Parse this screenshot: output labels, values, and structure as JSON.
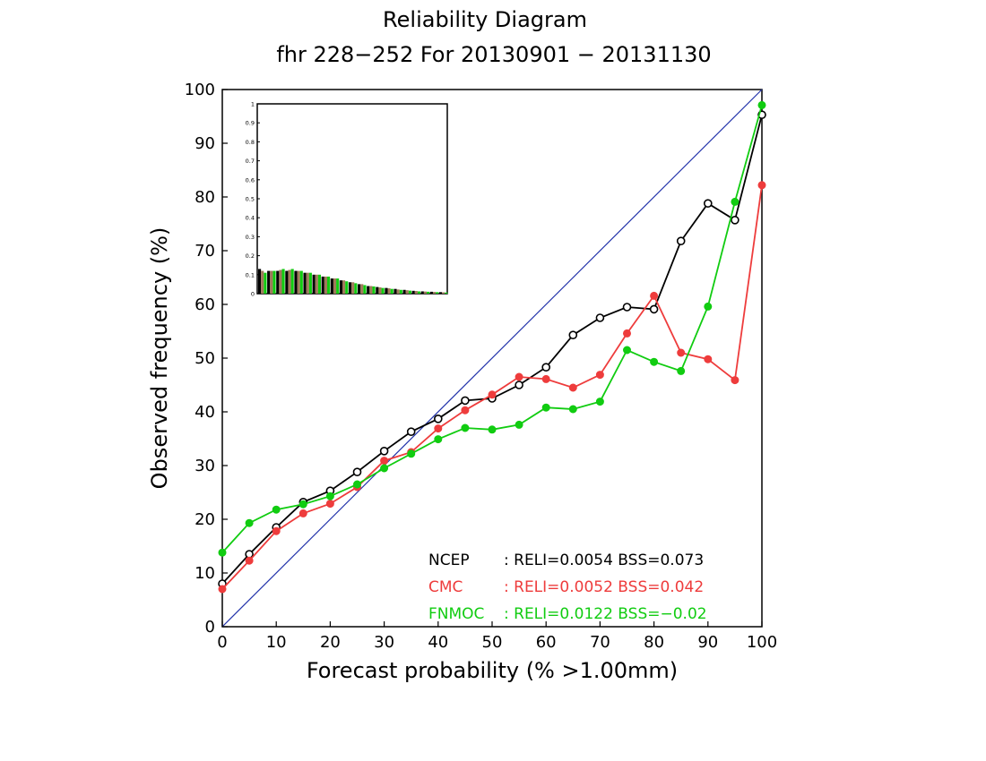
{
  "title": "Reliability Diagram",
  "subtitle": "fhr 228−252 For 20130901 − 20131130",
  "chart_data": {
    "type": "line",
    "xlabel": "Forecast probability (% >1.00mm)",
    "ylabel": "Observed frequency (%)",
    "xlim": [
      0,
      100
    ],
    "ylim": [
      0,
      100
    ],
    "x_ticks": [
      "0",
      "10",
      "20",
      "30",
      "40",
      "50",
      "60",
      "70",
      "80",
      "90",
      "100"
    ],
    "y_ticks": [
      "0",
      "10",
      "20",
      "30",
      "40",
      "50",
      "60",
      "70",
      "80",
      "90",
      "100"
    ],
    "diagonal_color": "#2233aa",
    "x": [
      0,
      5,
      10,
      15,
      20,
      25,
      30,
      35,
      40,
      45,
      50,
      55,
      60,
      65,
      70,
      75,
      80,
      85,
      90,
      95,
      100
    ],
    "series": [
      {
        "name": "NCEP",
        "color": "#000000",
        "marker": "open-circle",
        "stats": ": RELI=0.0054 BSS=0.073",
        "values": [
          8,
          13.5,
          18.5,
          23.2,
          25.3,
          28.8,
          32.7,
          36.3,
          38.7,
          42.1,
          42.5,
          45,
          48.3,
          54.3,
          57.5,
          59.5,
          59.1,
          71.8,
          78.8,
          75.7,
          95.3
        ]
      },
      {
        "name": "CMC",
        "color": "#ee3c3c",
        "marker": "filled-circle",
        "stats": ": RELI=0.0052 BSS=0.042",
        "values": [
          7,
          12.3,
          17.8,
          21.1,
          22.9,
          26,
          30.9,
          32.5,
          36.9,
          40.3,
          43.2,
          46.5,
          46.1,
          44.5,
          46.9,
          54.6,
          61.6,
          51,
          49.8,
          45.9,
          82.2
        ]
      },
      {
        "name": "FNMOC",
        "color": "#11cc11",
        "marker": "filled-circle",
        "stats": ": RELI=0.0122 BSS=−0.02",
        "values": [
          13.8,
          19.3,
          21.8,
          22.8,
          24.3,
          26.5,
          29.5,
          32.2,
          34.9,
          37,
          36.7,
          37.6,
          40.8,
          40.5,
          41.9,
          51.5,
          49.3,
          47.6,
          59.6,
          79.1,
          97.1
        ]
      }
    ],
    "inset": {
      "type": "bar",
      "ylim": [
        0,
        1
      ],
      "y_ticks": [
        "0",
        "0.1",
        "0.2",
        "0.3",
        "0.4",
        "0.5",
        "0.6",
        "0.7",
        "0.8",
        "0.9",
        "1"
      ],
      "bins": 21,
      "series": [
        {
          "name": "NCEP",
          "color": "#000000",
          "values": [
            0.13,
            0.12,
            0.12,
            0.12,
            0.12,
            0.11,
            0.1,
            0.09,
            0.08,
            0.07,
            0.06,
            0.05,
            0.04,
            0.035,
            0.03,
            0.025,
            0.02,
            0.015,
            0.012,
            0.01,
            0.008
          ]
        },
        {
          "name": "CMC",
          "color": "#a07a5a",
          "values": [
            0.12,
            0.12,
            0.125,
            0.125,
            0.12,
            0.11,
            0.1,
            0.09,
            0.08,
            0.07,
            0.06,
            0.05,
            0.04,
            0.033,
            0.028,
            0.022,
            0.018,
            0.014,
            0.011,
            0.009,
            0.007
          ]
        },
        {
          "name": "FNMOC",
          "color": "#11cc11",
          "values": [
            0.11,
            0.12,
            0.13,
            0.13,
            0.12,
            0.11,
            0.1,
            0.09,
            0.08,
            0.065,
            0.055,
            0.045,
            0.038,
            0.03,
            0.025,
            0.02,
            0.016,
            0.012,
            0.01,
            0.008,
            0.006
          ]
        }
      ]
    }
  }
}
